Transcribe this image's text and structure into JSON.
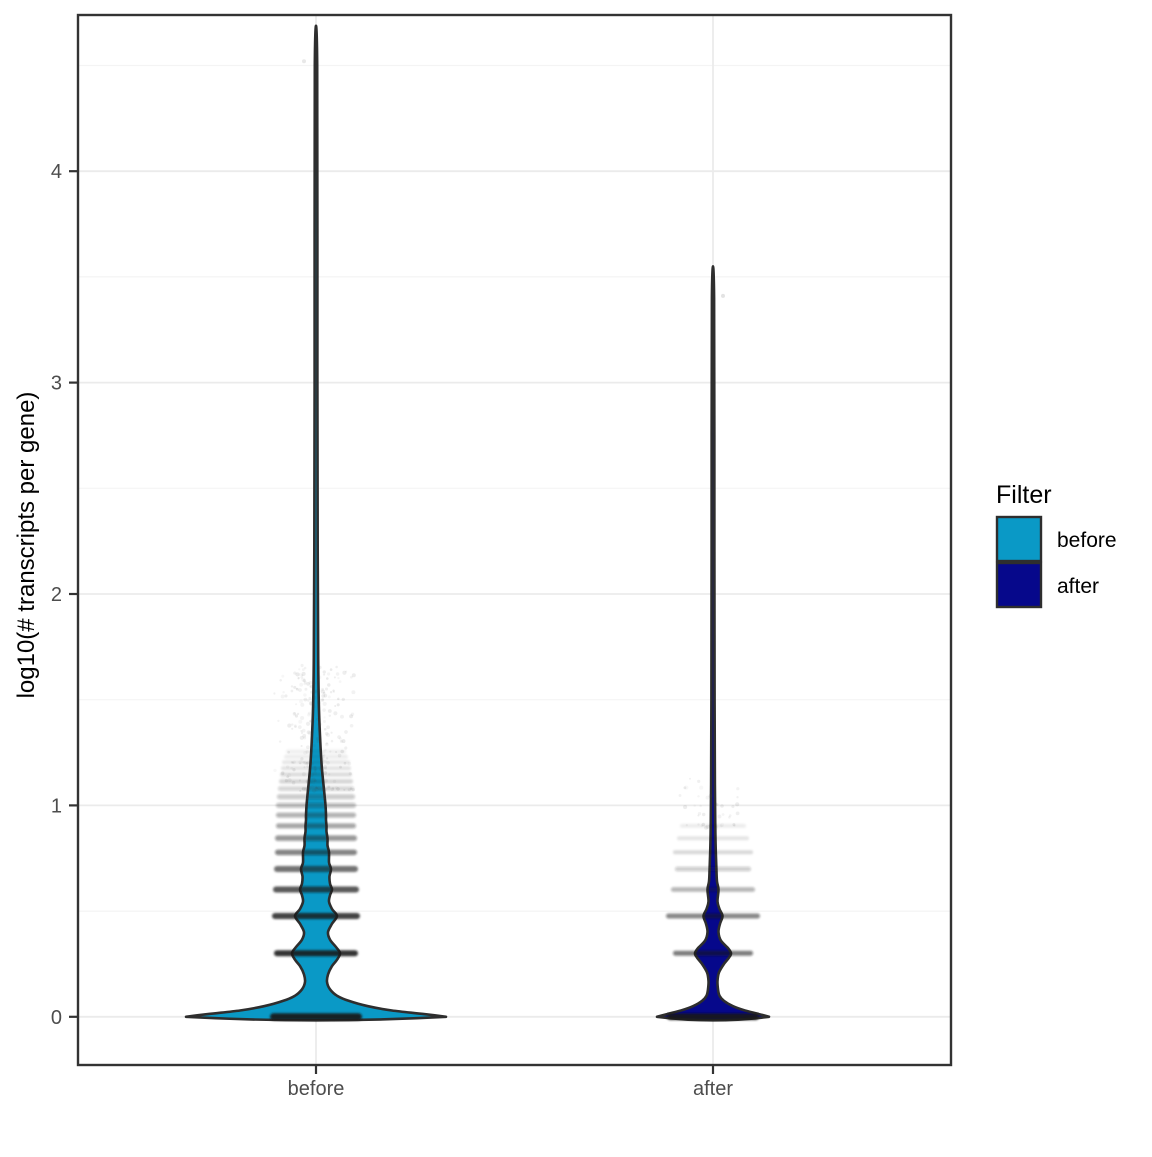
{
  "chart_data": {
    "type": "violin",
    "title": "",
    "xlabel": "",
    "ylabel": "log10(# transcripts per gene)",
    "categories": [
      "before",
      "after"
    ],
    "y_ticks": [
      0,
      1,
      2,
      3,
      4
    ],
    "y_minor_ticks": [
      0.5,
      1.5,
      2.5,
      3.5,
      4.5
    ],
    "ylim": [
      -0.23,
      4.74
    ],
    "grid": "on",
    "legend": {
      "title": "Filter",
      "position": "right",
      "entries": [
        {
          "label": "before",
          "color": "#0A99C6"
        },
        {
          "label": "after",
          "color": "#06088B"
        }
      ]
    },
    "colors": {
      "outline": "#2E2E2E",
      "grid_major": "#EBEBEB",
      "grid_minor": "#F4F4F4",
      "panel_border": "#333333",
      "axis_text": "#4D4D4D",
      "jitter": "#1A1A1A"
    },
    "series": [
      {
        "name": "before",
        "fill": "#0A99C6",
        "max_value": 4.5,
        "min_value": 0,
        "profile": [
          [
            0.0,
            130
          ],
          [
            0.013,
            108
          ],
          [
            0.03,
            76
          ],
          [
            0.05,
            52
          ],
          [
            0.075,
            33
          ],
          [
            0.1,
            21
          ],
          [
            0.13,
            14
          ],
          [
            0.165,
            11
          ],
          [
            0.2,
            12
          ],
          [
            0.24,
            16
          ],
          [
            0.27,
            21
          ],
          [
            0.301,
            24
          ],
          [
            0.33,
            20
          ],
          [
            0.365,
            14
          ],
          [
            0.4,
            12
          ],
          [
            0.44,
            16
          ],
          [
            0.477,
            21
          ],
          [
            0.51,
            16
          ],
          [
            0.545,
            13
          ],
          [
            0.575,
            14
          ],
          [
            0.602,
            16
          ],
          [
            0.63,
            14
          ],
          [
            0.665,
            13.5
          ],
          [
            0.699,
            15
          ],
          [
            0.73,
            13
          ],
          [
            0.778,
            13
          ],
          [
            0.81,
            11.5
          ],
          [
            0.845,
            11.5
          ],
          [
            0.875,
            10.5
          ],
          [
            0.903,
            10.5
          ],
          [
            0.93,
            10
          ],
          [
            0.954,
            10
          ],
          [
            1.0,
            9.5
          ],
          [
            1.05,
            8.5
          ],
          [
            1.12,
            7
          ],
          [
            1.2,
            5.5
          ],
          [
            1.3,
            4.3
          ],
          [
            1.45,
            3
          ],
          [
            1.7,
            2.2
          ],
          [
            2.2,
            1.7
          ],
          [
            3.0,
            1.4
          ],
          [
            4.5,
            1.2
          ]
        ],
        "jitter_stripes": [
          {
            "v": 0.0,
            "half": 46,
            "opacity": 0.92,
            "h": 7
          },
          {
            "v": 0.301,
            "half": 42,
            "opacity": 0.88,
            "h": 6
          },
          {
            "v": 0.477,
            "half": 44,
            "opacity": 0.82,
            "h": 6
          },
          {
            "v": 0.602,
            "half": 43,
            "opacity": 0.72,
            "h": 6
          },
          {
            "v": 0.699,
            "half": 42,
            "opacity": 0.62,
            "h": 6
          },
          {
            "v": 0.778,
            "half": 41,
            "opacity": 0.52,
            "h": 5.5
          },
          {
            "v": 0.845,
            "half": 41,
            "opacity": 0.44,
            "h": 5.5
          },
          {
            "v": 0.903,
            "half": 40,
            "opacity": 0.38,
            "h": 5
          },
          {
            "v": 0.954,
            "half": 40,
            "opacity": 0.33,
            "h": 5
          },
          {
            "v": 1.0,
            "half": 40,
            "opacity": 0.28,
            "h": 5
          },
          {
            "v": 1.041,
            "half": 39,
            "opacity": 0.23,
            "h": 5
          },
          {
            "v": 1.079,
            "half": 38,
            "opacity": 0.19,
            "h": 4.5
          },
          {
            "v": 1.114,
            "half": 37,
            "opacity": 0.16,
            "h": 4.5
          },
          {
            "v": 1.146,
            "half": 36,
            "opacity": 0.13,
            "h": 4.5
          },
          {
            "v": 1.176,
            "half": 35,
            "opacity": 0.11,
            "h": 4
          },
          {
            "v": 1.204,
            "half": 34,
            "opacity": 0.09,
            "h": 4
          },
          {
            "v": 1.23,
            "half": 32,
            "opacity": 0.07,
            "h": 4
          },
          {
            "v": 1.255,
            "half": 30,
            "opacity": 0.06,
            "h": 4
          }
        ],
        "jitter_cloud": {
          "n_min": 12,
          "n_max": 45,
          "count": 260,
          "half": 45
        },
        "extra_points": [
          {
            "v": 4.52,
            "dx": -12,
            "opacity": 0.12
          }
        ]
      },
      {
        "name": "after",
        "fill": "#06088B",
        "max_value": 3.4,
        "min_value": 0,
        "profile": [
          [
            0.0,
            56
          ],
          [
            0.013,
            46
          ],
          [
            0.03,
            32
          ],
          [
            0.05,
            20
          ],
          [
            0.075,
            11
          ],
          [
            0.1,
            6.5
          ],
          [
            0.13,
            5
          ],
          [
            0.17,
            4.5
          ],
          [
            0.21,
            6
          ],
          [
            0.25,
            11
          ],
          [
            0.28,
            16
          ],
          [
            0.301,
            18
          ],
          [
            0.325,
            15
          ],
          [
            0.36,
            8
          ],
          [
            0.4,
            5.5
          ],
          [
            0.44,
            7
          ],
          [
            0.477,
            9.5
          ],
          [
            0.51,
            6.5
          ],
          [
            0.545,
            4.5
          ],
          [
            0.602,
            5.5
          ],
          [
            0.64,
            4
          ],
          [
            0.699,
            3.4
          ],
          [
            0.78,
            2.8
          ],
          [
            0.9,
            2.3
          ],
          [
            1.1,
            1.9
          ],
          [
            1.5,
            1.6
          ],
          [
            2.2,
            1.4
          ],
          [
            3.4,
            1.1
          ]
        ],
        "jitter_stripes": [
          {
            "v": 0.0,
            "half": 46,
            "opacity": 0.9,
            "h": 6.5
          },
          {
            "v": 0.301,
            "half": 40,
            "opacity": 0.55,
            "h": 5
          },
          {
            "v": 0.477,
            "half": 47,
            "opacity": 0.5,
            "h": 5
          },
          {
            "v": 0.602,
            "half": 42,
            "opacity": 0.32,
            "h": 4.5
          },
          {
            "v": 0.699,
            "half": 38,
            "opacity": 0.22,
            "h": 4.5
          },
          {
            "v": 0.778,
            "half": 40,
            "opacity": 0.15,
            "h": 4
          },
          {
            "v": 0.845,
            "half": 36,
            "opacity": 0.1,
            "h": 4
          },
          {
            "v": 0.903,
            "half": 33,
            "opacity": 0.07,
            "h": 4
          }
        ],
        "jitter_cloud": {
          "n_min": 8,
          "n_max": 13,
          "count": 40,
          "half": 40
        },
        "extra_points": [
          {
            "v": 3.41,
            "dx": 10,
            "opacity": 0.15
          }
        ]
      }
    ]
  }
}
